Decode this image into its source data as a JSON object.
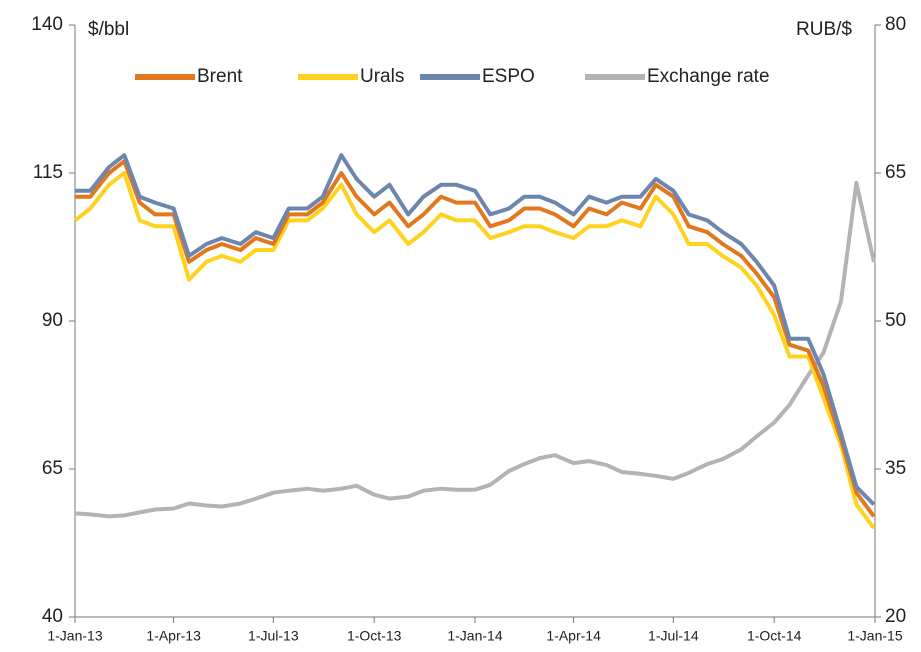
{
  "chart_data": {
    "type": "line",
    "y_label": "$/bbl",
    "y2_label": "RUB/$",
    "x": [
      "2013-01-01",
      "2013-01-15",
      "2013-02-01",
      "2013-02-15",
      "2013-03-01",
      "2013-03-15",
      "2013-04-01",
      "2013-04-15",
      "2013-05-01",
      "2013-05-15",
      "2013-06-01",
      "2013-06-15",
      "2013-07-01",
      "2013-07-15",
      "2013-08-01",
      "2013-08-15",
      "2013-09-01",
      "2013-09-15",
      "2013-10-01",
      "2013-10-15",
      "2013-11-01",
      "2013-11-15",
      "2013-12-01",
      "2013-12-15",
      "2014-01-01",
      "2014-01-15",
      "2014-02-01",
      "2014-02-15",
      "2014-03-01",
      "2014-03-15",
      "2014-04-01",
      "2014-04-15",
      "2014-05-01",
      "2014-05-15",
      "2014-06-01",
      "2014-06-15",
      "2014-07-01",
      "2014-07-15",
      "2014-08-01",
      "2014-08-15",
      "2014-09-01",
      "2014-09-15",
      "2014-10-01",
      "2014-10-15",
      "2014-11-01",
      "2014-11-15",
      "2014-12-01",
      "2014-12-15",
      "2014-12-31"
    ],
    "xlim": [
      "2013-01-01",
      "2015-01-01"
    ],
    "xticks": [
      {
        "value": "2013-01-01",
        "label": "1-Jan-13"
      },
      {
        "value": "2013-04-01",
        "label": "1-Apr-13"
      },
      {
        "value": "2013-07-01",
        "label": "1-Jul-13"
      },
      {
        "value": "2013-10-01",
        "label": "1-Oct-13"
      },
      {
        "value": "2014-01-01",
        "label": "1-Jan-14"
      },
      {
        "value": "2014-04-01",
        "label": "1-Apr-14"
      },
      {
        "value": "2014-07-01",
        "label": "1-Jul-14"
      },
      {
        "value": "2014-10-01",
        "label": "1-Oct-14"
      },
      {
        "value": "2015-01-01",
        "label": "1-Jan-15"
      }
    ],
    "ylim": [
      40,
      140
    ],
    "yticks": [
      40,
      65,
      90,
      115,
      140
    ],
    "y2lim": [
      20,
      80
    ],
    "y2ticks": [
      20,
      35,
      50,
      65,
      80
    ],
    "series": [
      {
        "name": "Brent",
        "color": "#e2781e",
        "values": [
          111,
          111,
          115,
          117,
          110,
          108,
          108,
          100,
          102,
          103,
          102,
          104,
          103,
          108,
          108,
          110,
          115,
          111,
          108,
          110,
          106,
          108,
          111,
          110,
          110,
          106,
          107,
          109,
          109,
          108,
          106,
          109,
          108,
          110,
          109,
          113,
          111,
          106,
          105,
          103,
          101,
          98,
          94,
          86,
          85,
          79,
          70,
          61,
          57
        ]
      },
      {
        "name": "Urals",
        "color": "#ffd21f",
        "values": [
          107,
          109,
          113,
          115,
          107,
          106,
          106,
          97,
          100,
          101,
          100,
          102,
          102,
          107,
          107,
          109,
          113,
          108,
          105,
          107,
          103,
          105,
          108,
          107,
          107,
          104,
          105,
          106,
          106,
          105,
          104,
          106,
          106,
          107,
          106,
          111,
          108,
          103,
          103,
          101,
          99,
          96,
          91,
          84,
          84,
          77,
          69,
          59,
          55
        ]
      },
      {
        "name": "ESPO",
        "color": "#6d86ad",
        "values": [
          112,
          112,
          116,
          118,
          111,
          110,
          109,
          101,
          103,
          104,
          103,
          105,
          104,
          109,
          109,
          111,
          118,
          114,
          111,
          113,
          108,
          111,
          113,
          113,
          112,
          108,
          109,
          111,
          111,
          110,
          108,
          111,
          110,
          111,
          111,
          114,
          112,
          108,
          107,
          105,
          103,
          100,
          96,
          87,
          87,
          81,
          71,
          62,
          59
        ]
      },
      {
        "name": "Exchange rate",
        "color": "#b3b3b3",
        "axis": "y2",
        "values": [
          30.5,
          30.4,
          30.2,
          30.3,
          30.6,
          30.9,
          31.0,
          31.5,
          31.3,
          31.2,
          31.5,
          32.0,
          32.6,
          32.8,
          33.0,
          32.8,
          33.0,
          33.3,
          32.4,
          32.0,
          32.2,
          32.8,
          33.0,
          32.9,
          32.9,
          33.4,
          34.8,
          35.5,
          36.1,
          36.4,
          35.6,
          35.8,
          35.4,
          34.7,
          34.5,
          34.3,
          34.0,
          34.6,
          35.5,
          36.0,
          37.0,
          38.3,
          39.7,
          41.5,
          44.5,
          46.8,
          52.0,
          64.0,
          56.0
        ]
      }
    ],
    "legend": "top"
  }
}
